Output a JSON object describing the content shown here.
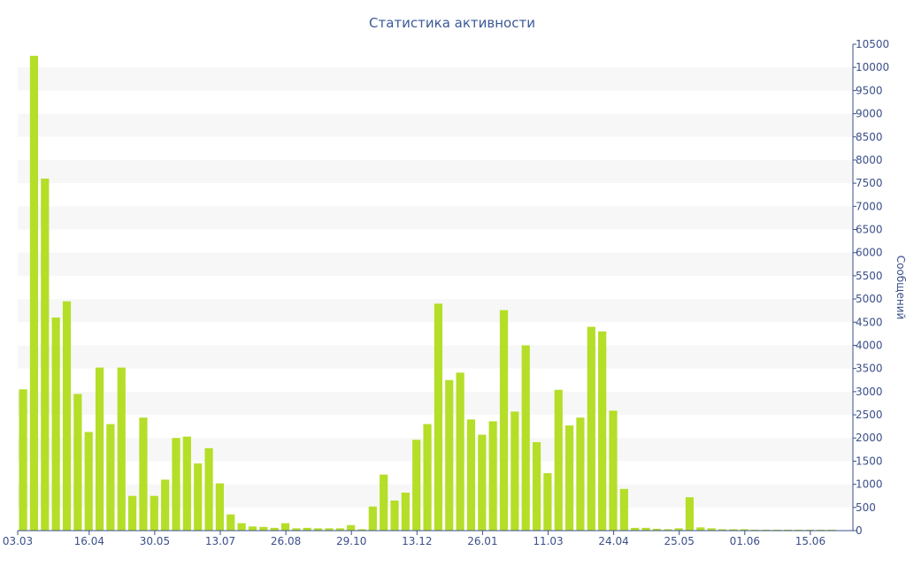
{
  "chart_data": {
    "type": "bar",
    "title": "Статистика активности",
    "xlabel": "",
    "ylabel": "Сообщений",
    "ylim": [
      0,
      10500
    ],
    "y_axis_position": "right",
    "grid": "alternating horizontal bands",
    "legend": "none",
    "bar_color": "#b5de28",
    "band_color": "#f7f7f7",
    "text_color": "#3b4f8a",
    "yticks": [
      "0",
      "500",
      "1000",
      "1500",
      "2000",
      "2500",
      "3000",
      "3500",
      "4000",
      "4500",
      "5000",
      "5500",
      "6000",
      "6500",
      "7000",
      "7500",
      "8000",
      "8500",
      "9000",
      "9500",
      "10000",
      "10500"
    ],
    "xtick_labels": [
      {
        "label": "03.03",
        "index": 0
      },
      {
        "label": "16.04",
        "index": 6
      },
      {
        "label": "30.05",
        "index": 12
      },
      {
        "label": "13.07",
        "index": 18
      },
      {
        "label": "26.08",
        "index": 24
      },
      {
        "label": "29.10",
        "index": 30
      },
      {
        "label": "13.12",
        "index": 36
      },
      {
        "label": "26.01",
        "index": 42
      },
      {
        "label": "11.03",
        "index": 48
      },
      {
        "label": "24.04",
        "index": 54
      },
      {
        "label": "25.05",
        "index": 60
      },
      {
        "label": "01.06",
        "index": 66
      },
      {
        "label": "15.06",
        "index": 72
      }
    ],
    "values": [
      3050,
      10250,
      7600,
      4600,
      4950,
      2950,
      2130,
      3520,
      2300,
      3520,
      750,
      2440,
      750,
      1100,
      2000,
      2030,
      1450,
      1780,
      1020,
      350,
      160,
      90,
      80,
      60,
      160,
      50,
      60,
      50,
      50,
      50,
      120,
      30,
      520,
      1210,
      650,
      820,
      1960,
      2300,
      4900,
      3250,
      3410,
      2400,
      2070,
      2360,
      4760,
      2570,
      4000,
      1910,
      1240,
      3040,
      2270,
      2440,
      4400,
      4300,
      2590,
      900,
      60,
      60,
      40,
      30,
      50,
      720,
      70,
      50,
      30,
      30,
      30,
      20,
      20,
      20,
      20,
      20,
      20,
      20,
      20
    ]
  }
}
